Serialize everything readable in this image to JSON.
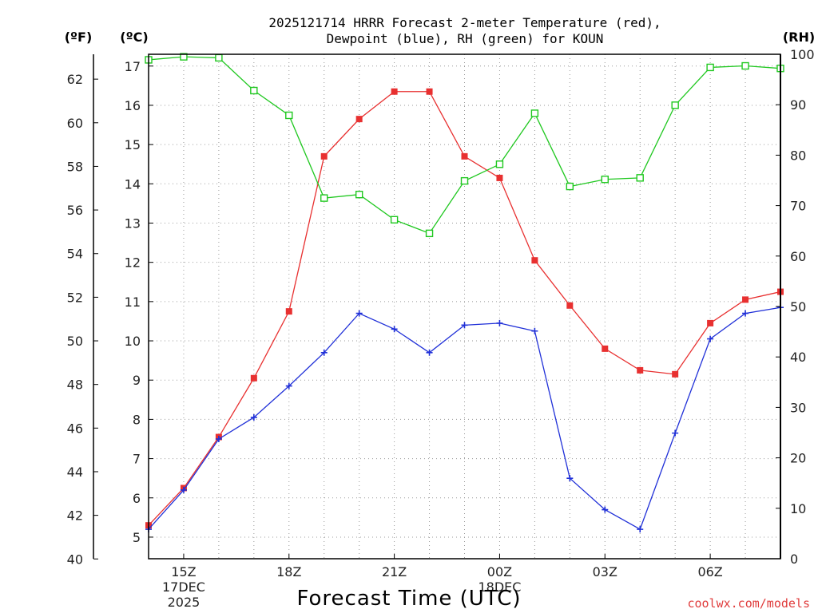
{
  "chart_data": {
    "type": "line",
    "title_line1": "2025121714 HRRR Forecast 2-meter Temperature (red),",
    "title_line2": "Dewpoint (blue), RH (green) for KOUN",
    "xlabel": "Forecast Time (UTC)",
    "credit": "coolwx.com/models",
    "units": {
      "fahrenheit": "(ºF)",
      "celsius": "(ºC)",
      "rh": "(RH)"
    },
    "x_hours": [
      14,
      15,
      16,
      17,
      18,
      19,
      20,
      21,
      22,
      23,
      24,
      25,
      26,
      27,
      28,
      29,
      30,
      31,
      32
    ],
    "xlim": [
      14,
      32
    ],
    "x_ticks": [
      {
        "hour": 15,
        "lines": [
          "15Z",
          "17DEC",
          "2025"
        ]
      },
      {
        "hour": 18,
        "lines": [
          "18Z"
        ]
      },
      {
        "hour": 21,
        "lines": [
          "21Z"
        ]
      },
      {
        "hour": 24,
        "lines": [
          "00Z",
          "18DEC"
        ]
      },
      {
        "hour": 27,
        "lines": [
          "03Z"
        ]
      },
      {
        "hour": 30,
        "lines": [
          "06Z"
        ]
      }
    ],
    "celsius_axis": {
      "lim": [
        4.45,
        17.3
      ],
      "ticks": [
        5,
        6,
        7,
        8,
        9,
        10,
        11,
        12,
        13,
        14,
        15,
        16,
        17
      ]
    },
    "fahrenheit_axis": {
      "ticks": [
        40,
        42,
        44,
        46,
        48,
        50,
        52,
        54,
        56,
        58,
        60,
        62
      ]
    },
    "rh_axis": {
      "lim": [
        0,
        100
      ],
      "ticks": [
        0,
        10,
        20,
        30,
        40,
        50,
        60,
        70,
        80,
        90,
        100
      ]
    },
    "series": [
      {
        "name": "2-meter Temperature",
        "unit": "C",
        "color": "#e83030",
        "marker": "filled-square",
        "values": [
          5.3,
          6.25,
          7.55,
          9.05,
          10.75,
          14.7,
          15.65,
          16.35,
          16.35,
          14.7,
          14.15,
          12.05,
          10.9,
          9.8,
          9.25,
          9.15,
          10.45,
          11.05,
          11.25
        ]
      },
      {
        "name": "Dewpoint",
        "unit": "C",
        "color": "#2030d8",
        "marker": "plus",
        "values": [
          5.2,
          6.2,
          7.5,
          8.05,
          8.85,
          9.7,
          10.7,
          10.3,
          9.7,
          10.4,
          10.45,
          10.25,
          6.5,
          5.7,
          5.2,
          7.65,
          10.05,
          10.7,
          10.85
        ]
      },
      {
        "name": "RH",
        "unit": "%",
        "color": "#20c820",
        "marker": "open-square",
        "values": [
          98.9,
          99.5,
          99.3,
          92.8,
          87.9,
          71.5,
          72.2,
          67.2,
          64.5,
          74.9,
          78.2,
          88.3,
          73.8,
          75.2,
          75.5,
          89.9,
          97.4,
          97.7,
          97.2
        ]
      }
    ]
  }
}
